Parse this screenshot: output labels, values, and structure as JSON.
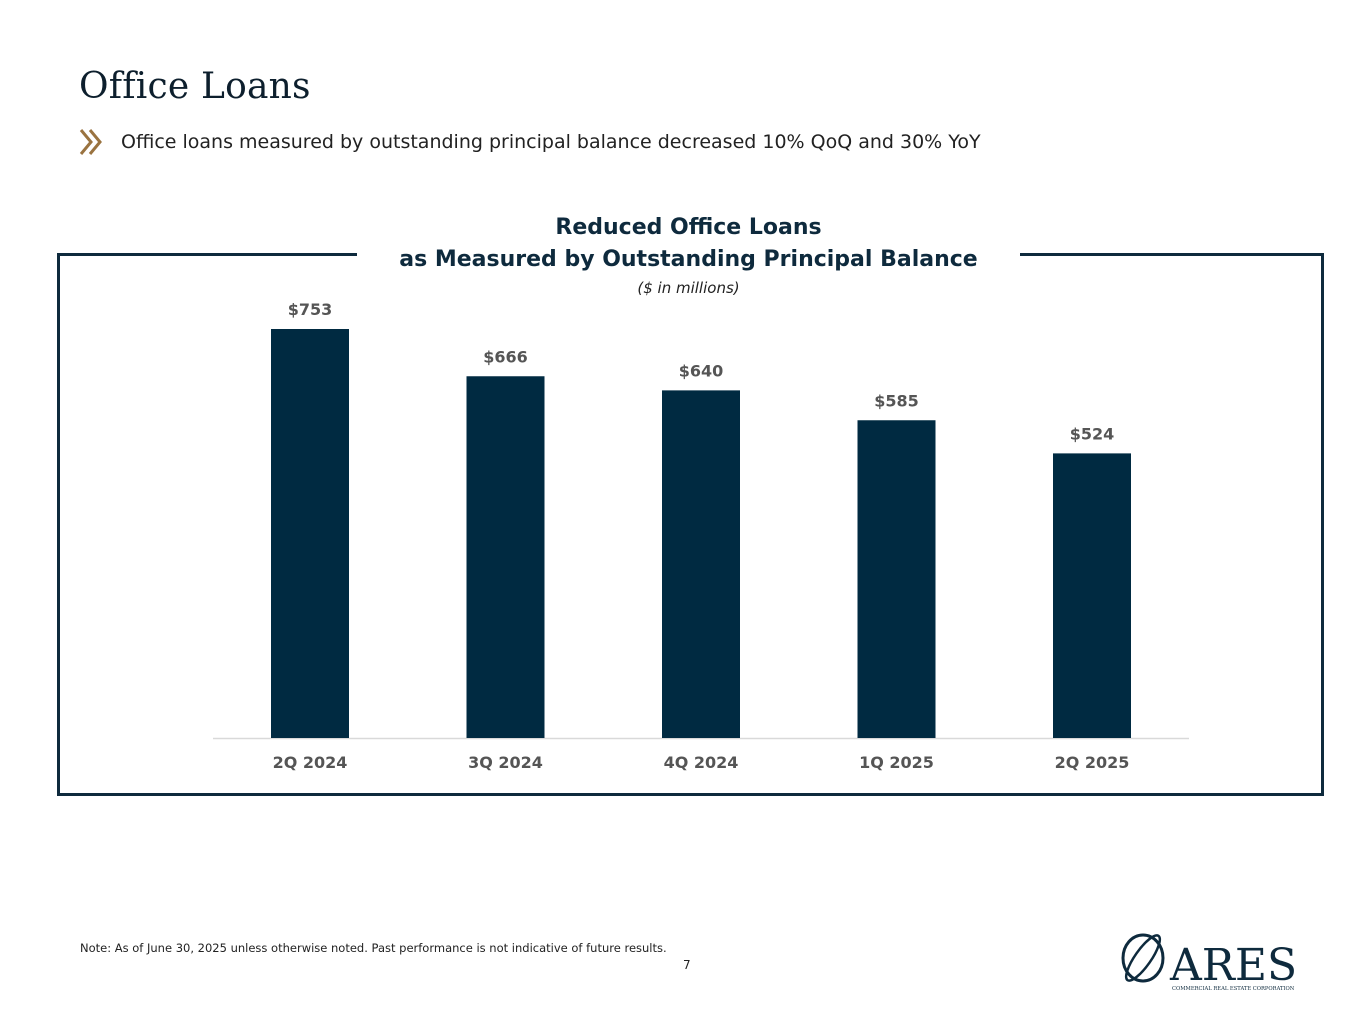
{
  "page": {
    "title": "Office Loans",
    "bullet": "Office loans measured by outstanding principal balance decreased 10% QoQ and 30% YoY",
    "note": "Note: As of June 30, 2025 unless otherwise noted. Past performance is not indicative of future results.",
    "page_number": "7",
    "logo_text": "ARES",
    "logo_subtext": "COMMERCIAL REAL ESTATE CORPORATION"
  },
  "colors": {
    "bar": "#002a41",
    "frame": "#0e2a3d",
    "accent": "#9a7340",
    "label": "#555555",
    "axis": "#d9d9d9"
  },
  "chart_data": {
    "type": "bar",
    "title_line1": "Reduced Office Loans",
    "title_line2": "as Measured by Outstanding Principal Balance",
    "subtitle": "($ in millions)",
    "categories": [
      "2Q 2024",
      "3Q 2024",
      "4Q 2024",
      "1Q 2025",
      "2Q 2025"
    ],
    "values": [
      753,
      666,
      640,
      585,
      524
    ],
    "value_labels": [
      "$753",
      "$666",
      "$640",
      "$585",
      "$524"
    ],
    "unit": "$ in millions",
    "ylim": [
      0,
      753
    ],
    "grid": false,
    "legend": "none"
  }
}
